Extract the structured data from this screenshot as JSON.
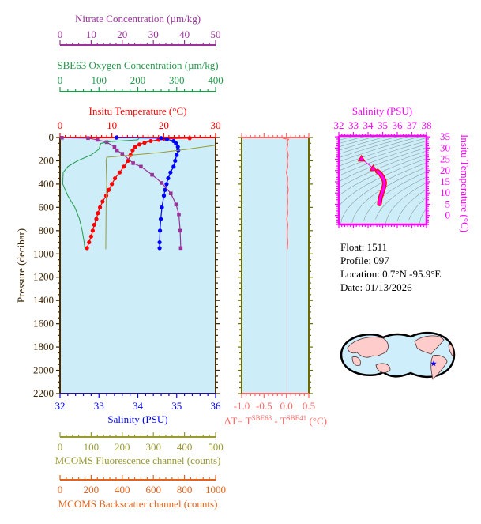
{
  "colors": {
    "plot_bg": "#cdeef8",
    "frame": "#4a2c00",
    "temperature": "#ff0000",
    "salinity": "#0000ff",
    "nitrate": "#993399",
    "oxygen": "#22994a",
    "fluorescence": "#999933",
    "backscatter": "#e0641e",
    "delta_t": "#ff6666",
    "ts": "#ff00ff",
    "land": "#ffcccc",
    "float_marker": "#0000ff"
  },
  "info": {
    "float": "Float:  1511",
    "profile": "Profile:  097",
    "location": "Location:  0.7°N  -95.9°E",
    "date": "Date:  01/13/2026"
  },
  "chart_data": [
    {
      "type": "line",
      "ylabel": "Pressure (decibar)",
      "ylim": [
        0,
        2200
      ],
      "y_ticks": [
        "0",
        "200",
        "400",
        "600",
        "800",
        "1000",
        "1200",
        "1400",
        "1600",
        "1800",
        "2000",
        "2200"
      ],
      "y_inverted": true,
      "axes": {
        "nitrate": {
          "label": "Nitrate Concentration (µm/kg)",
          "range": [
            0,
            50
          ],
          "ticks": [
            "0",
            "10",
            "20",
            "30",
            "40",
            "50"
          ],
          "position": "top"
        },
        "oxygen": {
          "label": "SBE63 Oxygen Concentration (µm/kg)",
          "range": [
            0,
            400
          ],
          "ticks": [
            "0",
            "100",
            "200",
            "300",
            "400"
          ],
          "position": "top"
        },
        "temperature": {
          "label": "Insitu Temperature (°C)",
          "range": [
            0,
            30
          ],
          "ticks": [
            "0",
            "10",
            "20",
            "30"
          ],
          "position": "top"
        },
        "salinity": {
          "label": "Salinity (PSU)",
          "range": [
            32,
            36
          ],
          "ticks": [
            "32",
            "33",
            "34",
            "35",
            "36"
          ],
          "position": "bottom"
        },
        "fluorescence": {
          "label": "MCOMS Fluorescence channel (counts)",
          "range": [
            0,
            500
          ],
          "ticks": [
            "0",
            "100",
            "200",
            "300",
            "400",
            "500"
          ],
          "position": "bottom"
        },
        "backscatter": {
          "label": "MCOMS Backscatter channel (counts)",
          "range": [
            0,
            1000
          ],
          "ticks": [
            "0",
            "200",
            "400",
            "600",
            "800",
            "1000"
          ],
          "position": "bottom"
        }
      },
      "series": [
        {
          "key": "temperature",
          "marker": "circle",
          "points": [
            [
              25,
              5
            ],
            [
              20,
              10
            ],
            [
              19,
              20
            ],
            [
              17.5,
              30
            ],
            [
              16.3,
              45
            ],
            [
              15.3,
              60
            ],
            [
              14.5,
              80
            ],
            [
              14.0,
              110
            ],
            [
              13.6,
              150
            ],
            [
              13.1,
              200
            ],
            [
              12.3,
              250
            ],
            [
              11.5,
              300
            ],
            [
              10.6,
              350
            ],
            [
              10.0,
              400
            ],
            [
              9.4,
              450
            ],
            [
              8.9,
              500
            ],
            [
              8.2,
              550
            ],
            [
              7.7,
              600
            ],
            [
              7.3,
              650
            ],
            [
              7.0,
              700
            ],
            [
              6.6,
              750
            ],
            [
              6.3,
              800
            ],
            [
              6.0,
              850
            ],
            [
              5.6,
              900
            ],
            [
              5.2,
              950
            ]
          ]
        },
        {
          "key": "salinity",
          "marker": "circle",
          "points": [
            [
              33.45,
              1
            ],
            [
              34.6,
              5
            ],
            [
              34.75,
              15
            ],
            [
              34.92,
              30
            ],
            [
              34.98,
              50
            ],
            [
              35.03,
              80
            ],
            [
              35.04,
              110
            ],
            [
              35.0,
              150
            ],
            [
              34.96,
              200
            ],
            [
              34.92,
              250
            ],
            [
              34.84,
              300
            ],
            [
              34.78,
              350
            ],
            [
              34.74,
              400
            ],
            [
              34.7,
              450
            ],
            [
              34.67,
              500
            ],
            [
              34.62,
              600
            ],
            [
              34.59,
              700
            ],
            [
              34.57,
              800
            ],
            [
              34.56,
              900
            ],
            [
              34.56,
              950
            ]
          ]
        },
        {
          "key": "nitrate",
          "marker": "square",
          "points": [
            [
              0.6,
              2
            ],
            [
              9,
              5
            ],
            [
              12,
              20
            ],
            [
              15,
              40
            ],
            [
              17.5,
              80
            ],
            [
              18.3,
              110
            ],
            [
              20,
              140
            ],
            [
              23.5,
              220
            ],
            [
              26,
              250
            ],
            [
              29.6,
              320
            ],
            [
              32.7,
              390
            ],
            [
              35.6,
              480
            ],
            [
              37.3,
              575
            ],
            [
              38.2,
              660
            ],
            [
              38.6,
              800
            ],
            [
              38.8,
              950
            ]
          ]
        },
        {
          "key": "oxygen",
          "marker": "none",
          "points": [
            [
              205,
              0
            ],
            [
              200,
              20
            ],
            [
              130,
              35
            ],
            [
              105,
              50
            ],
            [
              100,
              100
            ],
            [
              80,
              150
            ],
            [
              45,
              200
            ],
            [
              20,
              250
            ],
            [
              8,
              300
            ],
            [
              7,
              400
            ],
            [
              20,
              500
            ],
            [
              38,
              600
            ],
            [
              50,
              700
            ],
            [
              57,
              800
            ],
            [
              62,
              900
            ],
            [
              64,
              960
            ]
          ]
        },
        {
          "key": "fluorescence",
          "marker": "none",
          "points": [
            [
              500,
              66
            ],
            [
              410,
              100
            ],
            [
              320,
              130
            ],
            [
              150,
              170
            ],
            [
              148,
              200
            ],
            [
              150,
              400
            ],
            [
              148,
              600
            ],
            [
              147,
              960
            ]
          ]
        }
      ]
    },
    {
      "type": "line",
      "xlabel_parts": [
        "ΔT= T",
        "SBE63",
        " - T",
        "SBE41",
        " (°C)"
      ],
      "xlim": [
        -1.0,
        0.5
      ],
      "x_ticks": [
        "-1.0",
        "-0.5",
        "0.0",
        "0.5"
      ],
      "ylim": [
        0,
        2200
      ],
      "points": [
        [
          0.0,
          2
        ],
        [
          -0.08,
          8
        ],
        [
          0.05,
          15
        ],
        [
          0.02,
          30
        ],
        [
          0.03,
          60
        ],
        [
          0.01,
          100
        ],
        [
          0.04,
          150
        ],
        [
          0.02,
          200
        ],
        [
          0.03,
          250
        ],
        [
          0.0,
          300
        ],
        [
          0.03,
          350
        ],
        [
          0.02,
          400
        ],
        [
          0.04,
          450
        ],
        [
          0.02,
          500
        ],
        [
          0.03,
          550
        ],
        [
          0.02,
          600
        ],
        [
          0.03,
          650
        ],
        [
          0.01,
          700
        ],
        [
          0.03,
          750
        ],
        [
          0.02,
          800
        ],
        [
          0.02,
          850
        ],
        [
          0.03,
          900
        ],
        [
          0.02,
          960
        ]
      ]
    },
    {
      "type": "scatter",
      "title": "Salinity (PSU)",
      "xlim": [
        32,
        38
      ],
      "x_ticks": [
        "32",
        "33",
        "34",
        "35",
        "36",
        "37",
        "38"
      ],
      "ylabel": "Insitu Temperature (°C)",
      "ylim": [
        -4,
        35.4
      ],
      "y_ticks": [
        "0",
        "5",
        "10",
        "15",
        "20",
        "25",
        "30",
        "35"
      ],
      "density_contours": true,
      "triangles": [
        [
          33.55,
          25.3
        ],
        [
          34.35,
          21
        ]
      ],
      "points": [
        [
          34.65,
          19.6
        ],
        [
          34.85,
          18.5
        ],
        [
          35.0,
          17
        ],
        [
          35.1,
          15.5
        ],
        [
          35.13,
          14.5
        ],
        [
          35.1,
          13
        ],
        [
          35.05,
          12
        ],
        [
          35.0,
          11
        ],
        [
          34.95,
          10
        ],
        [
          34.9,
          9
        ],
        [
          34.85,
          8
        ],
        [
          34.82,
          7
        ],
        [
          34.8,
          6
        ],
        [
          34.78,
          5.2
        ]
      ]
    }
  ]
}
